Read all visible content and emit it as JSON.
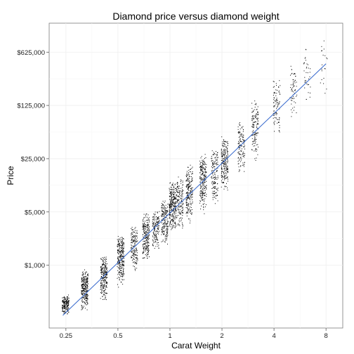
{
  "chart_data": {
    "type": "scatter",
    "title": "Diamond price versus diamond weight",
    "xlabel": "Carat Weight",
    "ylabel": "Price",
    "x_scale": "log",
    "y_scale": "log",
    "xlim": [
      0.2,
      10
    ],
    "ylim": [
      150,
      1500000
    ],
    "x_ticks": [
      0.25,
      0.5,
      1,
      2,
      4,
      8
    ],
    "x_tick_labels": [
      "0.25",
      "0.5",
      "1",
      "2",
      "4",
      "8"
    ],
    "y_ticks": [
      1000,
      5000,
      25000,
      125000,
      625000
    ],
    "y_tick_labels": [
      "$1,000",
      "$5,000",
      "$25,000",
      "$125,000",
      "$625,000"
    ],
    "grid": true,
    "legend": "none",
    "point_color": "#000000",
    "trend_line": {
      "color": "#3366cc",
      "points": [
        {
          "x": 0.24,
          "y": 220
        },
        {
          "x": 8,
          "y": 440000
        }
      ]
    },
    "clusters": [
      {
        "carat": 0.24,
        "price_low": 220,
        "price_high": 420,
        "count": 180
      },
      {
        "carat": 0.31,
        "price_low": 250,
        "price_high": 900,
        "count": 260
      },
      {
        "carat": 0.4,
        "price_low": 330,
        "price_high": 1400,
        "count": 240
      },
      {
        "carat": 0.5,
        "price_low": 500,
        "price_high": 2500,
        "count": 260
      },
      {
        "carat": 0.6,
        "price_low": 800,
        "price_high": 3500,
        "count": 160
      },
      {
        "carat": 0.7,
        "price_low": 1100,
        "price_high": 5000,
        "count": 220
      },
      {
        "carat": 0.8,
        "price_low": 1500,
        "price_high": 5800,
        "count": 150
      },
      {
        "carat": 0.9,
        "price_low": 1700,
        "price_high": 7500,
        "count": 180
      },
      {
        "carat": 1.0,
        "price_low": 2500,
        "price_high": 13000,
        "count": 280
      },
      {
        "carat": 1.1,
        "price_low": 2800,
        "price_high": 15000,
        "count": 150
      },
      {
        "carat": 1.25,
        "price_low": 3500,
        "price_high": 22000,
        "count": 200
      },
      {
        "carat": 1.5,
        "price_low": 4500,
        "price_high": 30000,
        "count": 220
      },
      {
        "carat": 1.75,
        "price_low": 6000,
        "price_high": 35000,
        "count": 150
      },
      {
        "carat": 2.0,
        "price_low": 9000,
        "price_high": 50000,
        "count": 220
      },
      {
        "carat": 2.5,
        "price_low": 14000,
        "price_high": 80000,
        "count": 130
      },
      {
        "carat": 3.0,
        "price_low": 22000,
        "price_high": 160000,
        "count": 130
      },
      {
        "carat": 4.0,
        "price_low": 45000,
        "price_high": 300000,
        "count": 90
      },
      {
        "carat": 5.0,
        "price_low": 70000,
        "price_high": 450000,
        "count": 60
      },
      {
        "carat": 6.0,
        "price_low": 100000,
        "price_high": 800000,
        "count": 35
      },
      {
        "carat": 7.5,
        "price_low": 150000,
        "price_high": 1100000,
        "count": 20
      }
    ]
  }
}
